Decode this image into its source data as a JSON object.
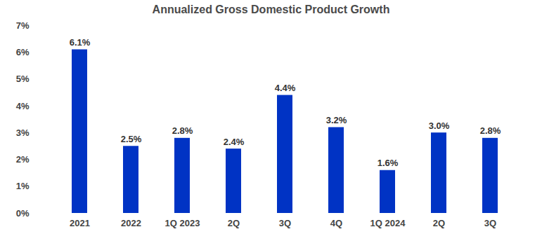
{
  "chart_data": {
    "type": "bar",
    "title": "Annualized Gross Domestic Product Growth",
    "categories": [
      "2021",
      "2022",
      "1Q 2023",
      "2Q",
      "3Q",
      "4Q",
      "1Q 2024",
      "2Q",
      "3Q"
    ],
    "values": [
      6.1,
      2.5,
      2.8,
      2.4,
      4.4,
      3.2,
      1.6,
      3.0,
      2.8
    ],
    "value_labels": [
      "6.1%",
      "2.5%",
      "2.8%",
      "2.4%",
      "4.4%",
      "3.2%",
      "1.6%",
      "3.0%",
      "2.8%"
    ],
    "color": "#0033c4",
    "ylim": [
      0,
      7
    ],
    "yticks": [
      {
        "value": 0,
        "label": "0%"
      },
      {
        "value": 1,
        "label": "1%"
      },
      {
        "value": 2,
        "label": "2%"
      },
      {
        "value": 3,
        "label": "3%"
      },
      {
        "value": 4,
        "label": "4%"
      },
      {
        "value": 5,
        "label": "5%"
      },
      {
        "value": 6,
        "label": "6%"
      },
      {
        "value": 7,
        "label": "7%"
      }
    ],
    "grid": false,
    "data_labels": true
  }
}
